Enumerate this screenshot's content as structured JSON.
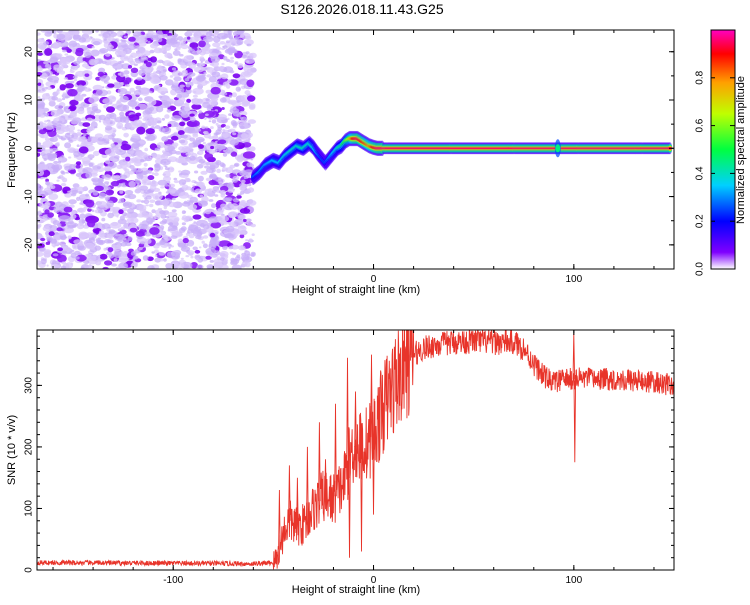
{
  "title": "S126.2026.018.11.43.G25",
  "chart_data": [
    {
      "type": "heatmap",
      "name": "spectrogram",
      "xlabel": "Height of straight line (km)",
      "ylabel": "Frequency (Hz)",
      "xlim": [
        -168,
        150
      ],
      "ylim": [
        -25,
        24.5
      ],
      "xticks": [
        -100,
        0,
        100
      ],
      "xtick_labels": [
        "-100",
        "0",
        "100"
      ],
      "yticks": [
        -20,
        -10,
        0,
        10,
        20
      ],
      "ytick_labels": [
        "-20",
        "-10",
        "0",
        "10",
        "20"
      ],
      "noise_region_x": [
        -168,
        -60
      ],
      "track": {
        "x": [
          -60,
          -57,
          -54,
          -50,
          -47,
          -44,
          -41,
          -38,
          -35,
          -32,
          -30,
          -28,
          -26,
          -24,
          -22,
          -20,
          -18,
          -16,
          -14,
          -12,
          -10,
          -8,
          -6,
          -4,
          -2,
          0,
          2,
          4,
          6,
          10,
          15,
          20,
          30,
          40,
          50,
          60,
          70,
          80,
          90,
          100,
          110,
          120,
          130,
          140,
          148
        ],
        "y": [
          -6,
          -5,
          -3.5,
          -2.5,
          -3.0,
          -1.5,
          -0.5,
          0.5,
          0.0,
          1.0,
          0.2,
          -1.0,
          -2.0,
          -3.0,
          -2.0,
          -1.0,
          0.0,
          0.5,
          1.5,
          2.0,
          2.0,
          2.0,
          1.5,
          1.0,
          0.5,
          0.2,
          0.0,
          0.0,
          0.0,
          0.0,
          0.0,
          0.0,
          0.0,
          0.0,
          0.0,
          0.0,
          0.0,
          0.0,
          0.0,
          0.0,
          0.0,
          0.0,
          0.0,
          0.0,
          0.0
        ],
        "amplitude": [
          0.25,
          0.3,
          0.32,
          0.35,
          0.35,
          0.38,
          0.4,
          0.4,
          0.42,
          0.4,
          0.38,
          0.3,
          0.25,
          0.25,
          0.3,
          0.35,
          0.4,
          0.45,
          0.55,
          0.7,
          0.9,
          0.95,
          0.9,
          0.85,
          0.8,
          0.9,
          0.95,
          0.95,
          0.95,
          0.95,
          0.95,
          0.95,
          0.95,
          0.95,
          0.95,
          0.95,
          0.95,
          0.95,
          0.95,
          0.95,
          0.95,
          0.95,
          0.95,
          0.95,
          0.95
        ]
      },
      "colorbar": {
        "label": "Normalized spectral amplitude",
        "range": [
          0,
          1
        ],
        "ticks": [
          0.0,
          0.2,
          0.4,
          0.6,
          0.8
        ],
        "tick_labels": [
          "0.0",
          "0.2",
          "0.4",
          "0.6",
          "0.8"
        ]
      }
    },
    {
      "type": "line",
      "name": "snr",
      "xlabel": "Height of straight line (km)",
      "ylabel": "SNR (10 * v/v)",
      "xlim": [
        -168,
        150
      ],
      "ylim": [
        0,
        390
      ],
      "xticks": [
        -100,
        0,
        100
      ],
      "xtick_labels": [
        "-100",
        "0",
        "100"
      ],
      "yticks": [
        0,
        100,
        200,
        300
      ],
      "ytick_labels": [
        "0",
        "100",
        "200",
        "300"
      ],
      "color": "#e8342a",
      "envelope_x": [
        -168,
        -100,
        -60,
        -50,
        -48,
        -45,
        -42,
        -38,
        -35,
        -30,
        -25,
        -20,
        -15,
        -12,
        -10,
        -5,
        0,
        5,
        10,
        15,
        20,
        25,
        30,
        40,
        50,
        60,
        70,
        75,
        80,
        85,
        90,
        95,
        100,
        105,
        110,
        120,
        130,
        140,
        150
      ],
      "envelope_y": [
        12,
        11,
        10,
        12,
        20,
        60,
        80,
        70,
        75,
        100,
        120,
        115,
        140,
        180,
        200,
        200,
        220,
        265,
        300,
        330,
        350,
        360,
        365,
        370,
        372,
        370,
        370,
        360,
        335,
        315,
        305,
        310,
        310,
        312,
        310,
        310,
        308,
        305,
        300
      ],
      "spikes": [
        {
          "x": -47,
          "y": 130
        },
        {
          "x": -42,
          "y": 170
        },
        {
          "x": -38,
          "y": 150
        },
        {
          "x": -33,
          "y": 200
        },
        {
          "x": -27,
          "y": 240
        },
        {
          "x": -24,
          "y": 180
        },
        {
          "x": -19,
          "y": 270
        },
        {
          "x": -13,
          "y": 345
        },
        {
          "x": -12,
          "y": 20
        },
        {
          "x": -9,
          "y": 290
        },
        {
          "x": -6,
          "y": 30
        },
        {
          "x": -1,
          "y": 350
        },
        {
          "x": 0,
          "y": 90
        },
        {
          "x": 100,
          "y": 385
        },
        {
          "x": 100.5,
          "y": 175
        }
      ]
    }
  ]
}
